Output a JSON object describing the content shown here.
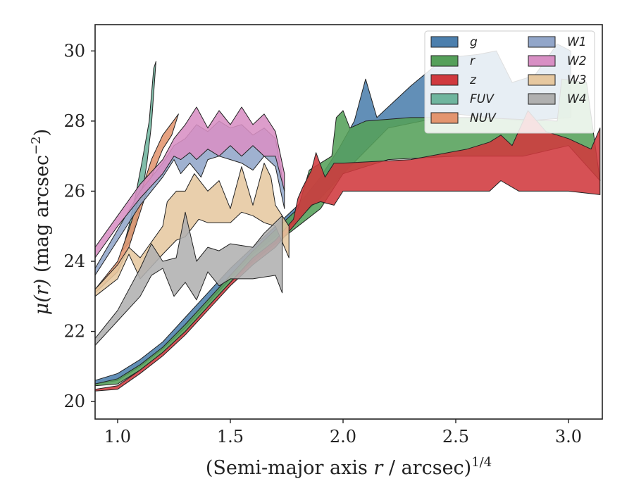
{
  "chart_data": {
    "type": "area",
    "xlabel_text": "(Semi-major axis ",
    "xlabel_var": "r",
    "xlabel_mid": " / arcsec)",
    "xlabel_sup": "1/4",
    "ylabel_text": " (mag arcsec",
    "ylabel_var": "μ(r)",
    "ylabel_sup": "−2",
    "ylabel_close": ")",
    "xlim": [
      0.9,
      3.15
    ],
    "ylim": [
      30.75,
      19.5
    ],
    "y_inverted": true,
    "x_ticks": [
      1.0,
      1.5,
      2.0,
      2.5,
      3.0
    ],
    "x_tick_labels": [
      "1.0",
      "1.5",
      "2.0",
      "2.5",
      "3.0"
    ],
    "y_ticks": [
      20,
      22,
      24,
      26,
      28,
      30
    ],
    "y_tick_labels": [
      "20",
      "22",
      "24",
      "26",
      "28",
      "30"
    ],
    "grid": false,
    "legend_placement": "top-right",
    "legend_columns": 2,
    "series": [
      {
        "name": "g",
        "color": "#4c7fad",
        "upper": [
          [
            0.9,
            20.5
          ],
          [
            1.0,
            20.6
          ],
          [
            1.1,
            21.0
          ],
          [
            1.2,
            21.5
          ],
          [
            1.3,
            22.1
          ],
          [
            1.4,
            22.8
          ],
          [
            1.5,
            23.5
          ],
          [
            1.6,
            24.2
          ],
          [
            1.7,
            24.7
          ],
          [
            1.8,
            25.2
          ],
          [
            1.9,
            25.8
          ],
          [
            2.0,
            26.5
          ],
          [
            2.2,
            27.8
          ],
          [
            2.5,
            28.2
          ],
          [
            2.8,
            28.0
          ],
          [
            3.01,
            28.1
          ]
        ],
        "lower": [
          [
            0.9,
            20.6
          ],
          [
            1.0,
            20.8
          ],
          [
            1.1,
            21.2
          ],
          [
            1.2,
            21.7
          ],
          [
            1.3,
            22.4
          ],
          [
            1.4,
            23.1
          ],
          [
            1.5,
            23.8
          ],
          [
            1.6,
            24.4
          ],
          [
            1.7,
            25.0
          ],
          [
            1.8,
            25.6
          ],
          [
            1.9,
            26.4
          ],
          [
            1.98,
            27.2
          ],
          [
            2.05,
            28.0
          ],
          [
            2.1,
            29.2
          ],
          [
            2.15,
            28.1
          ],
          [
            2.3,
            29.0
          ],
          [
            2.45,
            29.8
          ],
          [
            2.6,
            29.9
          ],
          [
            2.68,
            30.0
          ],
          [
            2.75,
            29.1
          ],
          [
            2.85,
            29.3
          ],
          [
            2.95,
            30.2
          ],
          [
            3.01,
            30.0
          ]
        ]
      },
      {
        "name": "r",
        "color": "#55a05a",
        "upper": [
          [
            0.9,
            20.45
          ],
          [
            1.0,
            20.5
          ],
          [
            1.1,
            20.9
          ],
          [
            1.2,
            21.4
          ],
          [
            1.3,
            22.0
          ],
          [
            1.4,
            22.7
          ],
          [
            1.5,
            23.4
          ],
          [
            1.6,
            24.0
          ],
          [
            1.7,
            24.5
          ],
          [
            1.8,
            25.0
          ],
          [
            1.9,
            25.5
          ],
          [
            2.0,
            26.5
          ],
          [
            2.2,
            26.9
          ],
          [
            2.5,
            27.0
          ],
          [
            2.8,
            27.0
          ],
          [
            3.0,
            27.3
          ],
          [
            3.14,
            26.3
          ]
        ],
        "lower": [
          [
            0.9,
            20.5
          ],
          [
            1.0,
            20.65
          ],
          [
            1.1,
            21.05
          ],
          [
            1.2,
            21.55
          ],
          [
            1.3,
            22.2
          ],
          [
            1.4,
            22.9
          ],
          [
            1.5,
            23.6
          ],
          [
            1.6,
            24.3
          ],
          [
            1.7,
            24.9
          ],
          [
            1.8,
            25.5
          ],
          [
            1.85,
            26.6
          ],
          [
            1.9,
            26.8
          ],
          [
            1.95,
            27.0
          ],
          [
            1.97,
            28.1
          ],
          [
            2.0,
            28.3
          ],
          [
            2.03,
            27.8
          ],
          [
            2.1,
            28.0
          ],
          [
            2.3,
            28.1
          ],
          [
            2.6,
            28.1
          ],
          [
            2.95,
            28.0
          ],
          [
            2.97,
            29.2
          ],
          [
            3.08,
            29.1
          ],
          [
            3.14,
            26.3
          ]
        ]
      },
      {
        "name": "z",
        "color": "#d0393e",
        "upper": [
          [
            0.9,
            20.3
          ],
          [
            1.0,
            20.35
          ],
          [
            1.1,
            20.8
          ],
          [
            1.2,
            21.3
          ],
          [
            1.3,
            21.9
          ],
          [
            1.4,
            22.6
          ],
          [
            1.5,
            23.3
          ],
          [
            1.6,
            23.9
          ],
          [
            1.7,
            24.4
          ],
          [
            1.78,
            25.0
          ],
          [
            1.82,
            25.3
          ],
          [
            1.86,
            25.6
          ],
          [
            1.9,
            25.7
          ],
          [
            1.96,
            25.6
          ],
          [
            2.0,
            26.0
          ],
          [
            2.3,
            26.0
          ],
          [
            2.65,
            26.0
          ],
          [
            2.7,
            26.3
          ],
          [
            2.78,
            26.0
          ],
          [
            2.9,
            26.0
          ],
          [
            3.0,
            26.0
          ],
          [
            3.14,
            25.9
          ]
        ],
        "lower": [
          [
            0.9,
            20.35
          ],
          [
            1.0,
            20.45
          ],
          [
            1.1,
            20.9
          ],
          [
            1.2,
            21.4
          ],
          [
            1.3,
            22.0
          ],
          [
            1.4,
            22.7
          ],
          [
            1.5,
            23.4
          ],
          [
            1.6,
            24.1
          ],
          [
            1.7,
            24.6
          ],
          [
            1.78,
            25.2
          ],
          [
            1.8,
            25.8
          ],
          [
            1.82,
            26.1
          ],
          [
            1.86,
            26.6
          ],
          [
            1.88,
            27.1
          ],
          [
            1.92,
            26.4
          ],
          [
            1.96,
            26.8
          ],
          [
            2.0,
            26.8
          ],
          [
            2.3,
            26.9
          ],
          [
            2.55,
            27.2
          ],
          [
            2.65,
            27.4
          ],
          [
            2.7,
            27.6
          ],
          [
            2.75,
            27.3
          ],
          [
            2.82,
            28.3
          ],
          [
            2.9,
            27.7
          ],
          [
            3.0,
            27.5
          ],
          [
            3.1,
            27.2
          ],
          [
            3.14,
            27.8
          ]
        ]
      },
      {
        "name": "FUV",
        "color": "#6fb59e",
        "upper": [
          [
            1.02,
            24.3
          ],
          [
            1.06,
            24.6
          ],
          [
            1.1,
            25.6
          ],
          [
            1.13,
            26.8
          ],
          [
            1.15,
            27.9
          ],
          [
            1.17,
            29.7
          ]
        ],
        "lower": [
          [
            1.02,
            24.3
          ],
          [
            1.05,
            25.0
          ],
          [
            1.08,
            25.9
          ],
          [
            1.11,
            26.9
          ],
          [
            1.14,
            28.0
          ],
          [
            1.16,
            29.5
          ]
        ]
      },
      {
        "name": "NUV",
        "color": "#e3956f",
        "upper": [
          [
            0.9,
            23.1
          ],
          [
            1.0,
            23.7
          ],
          [
            1.05,
            24.4
          ],
          [
            1.1,
            25.4
          ],
          [
            1.15,
            26.4
          ],
          [
            1.2,
            27.2
          ],
          [
            1.24,
            27.6
          ]
        ],
        "lower": [
          [
            0.9,
            23.2
          ],
          [
            1.0,
            24.0
          ],
          [
            1.05,
            24.9
          ],
          [
            1.1,
            25.9
          ],
          [
            1.15,
            26.9
          ],
          [
            1.2,
            27.6
          ],
          [
            1.27,
            28.2
          ]
        ]
      },
      {
        "name": "W1",
        "color": "#92a6c9",
        "upper": [
          [
            0.9,
            23.6
          ],
          [
            1.0,
            24.6
          ],
          [
            1.1,
            25.6
          ],
          [
            1.2,
            26.4
          ],
          [
            1.25,
            26.9
          ],
          [
            1.28,
            26.5
          ],
          [
            1.32,
            26.8
          ],
          [
            1.37,
            26.4
          ],
          [
            1.4,
            26.9
          ],
          [
            1.45,
            27.0
          ],
          [
            1.5,
            26.9
          ],
          [
            1.55,
            26.8
          ],
          [
            1.6,
            26.6
          ],
          [
            1.65,
            27.0
          ],
          [
            1.7,
            26.7
          ],
          [
            1.74,
            25.5
          ]
        ],
        "lower": [
          [
            0.9,
            23.8
          ],
          [
            1.0,
            24.9
          ],
          [
            1.1,
            26.0
          ],
          [
            1.2,
            26.8
          ],
          [
            1.25,
            27.3
          ],
          [
            1.3,
            27.5
          ],
          [
            1.35,
            27.9
          ],
          [
            1.4,
            27.7
          ],
          [
            1.45,
            28.0
          ],
          [
            1.5,
            27.8
          ],
          [
            1.55,
            27.9
          ],
          [
            1.6,
            27.6
          ],
          [
            1.65,
            27.8
          ],
          [
            1.7,
            27.5
          ],
          [
            1.74,
            26.0
          ]
        ]
      },
      {
        "name": "W2",
        "color": "#d88fc4",
        "upper": [
          [
            0.9,
            24.1
          ],
          [
            1.0,
            25.0
          ],
          [
            1.1,
            25.8
          ],
          [
            1.2,
            26.5
          ],
          [
            1.25,
            27.0
          ],
          [
            1.28,
            26.9
          ],
          [
            1.32,
            27.1
          ],
          [
            1.35,
            26.9
          ],
          [
            1.4,
            27.2
          ],
          [
            1.45,
            27.0
          ],
          [
            1.5,
            27.3
          ],
          [
            1.55,
            27.0
          ],
          [
            1.6,
            27.3
          ],
          [
            1.65,
            27.0
          ],
          [
            1.7,
            27.0
          ],
          [
            1.74,
            26.0
          ]
        ],
        "lower": [
          [
            0.9,
            24.4
          ],
          [
            1.0,
            25.3
          ],
          [
            1.1,
            26.2
          ],
          [
            1.2,
            26.9
          ],
          [
            1.25,
            27.5
          ],
          [
            1.3,
            27.9
          ],
          [
            1.35,
            28.4
          ],
          [
            1.4,
            27.8
          ],
          [
            1.45,
            28.3
          ],
          [
            1.5,
            27.9
          ],
          [
            1.55,
            28.4
          ],
          [
            1.6,
            27.9
          ],
          [
            1.65,
            28.2
          ],
          [
            1.7,
            27.7
          ],
          [
            1.74,
            26.5
          ]
        ]
      },
      {
        "name": "W3",
        "color": "#e6c8a0",
        "upper": [
          [
            0.9,
            23.0
          ],
          [
            1.0,
            23.5
          ],
          [
            1.05,
            24.2
          ],
          [
            1.1,
            23.5
          ],
          [
            1.2,
            24.2
          ],
          [
            1.26,
            24.6
          ],
          [
            1.3,
            24.7
          ],
          [
            1.36,
            25.2
          ],
          [
            1.4,
            25.1
          ],
          [
            1.45,
            25.1
          ],
          [
            1.5,
            25.1
          ],
          [
            1.55,
            25.4
          ],
          [
            1.6,
            25.3
          ],
          [
            1.65,
            25.1
          ],
          [
            1.7,
            25.0
          ],
          [
            1.76,
            24.1
          ]
        ],
        "lower": [
          [
            0.9,
            23.2
          ],
          [
            1.0,
            23.9
          ],
          [
            1.05,
            24.4
          ],
          [
            1.1,
            24.1
          ],
          [
            1.2,
            25.0
          ],
          [
            1.22,
            25.7
          ],
          [
            1.26,
            26.0
          ],
          [
            1.3,
            26.0
          ],
          [
            1.34,
            26.5
          ],
          [
            1.4,
            26.0
          ],
          [
            1.45,
            26.3
          ],
          [
            1.5,
            25.5
          ],
          [
            1.55,
            26.7
          ],
          [
            1.6,
            25.6
          ],
          [
            1.65,
            26.8
          ],
          [
            1.68,
            26.4
          ],
          [
            1.7,
            25.6
          ],
          [
            1.76,
            25.0
          ]
        ]
      },
      {
        "name": "W4",
        "color": "#b0b0b0",
        "upper": [
          [
            0.9,
            21.6
          ],
          [
            1.0,
            22.3
          ],
          [
            1.1,
            23.0
          ],
          [
            1.15,
            23.6
          ],
          [
            1.2,
            23.8
          ],
          [
            1.25,
            23.0
          ],
          [
            1.3,
            23.4
          ],
          [
            1.35,
            22.9
          ],
          [
            1.4,
            23.7
          ],
          [
            1.45,
            23.3
          ],
          [
            1.5,
            23.5
          ],
          [
            1.6,
            23.5
          ],
          [
            1.7,
            23.6
          ],
          [
            1.73,
            23.1
          ]
        ],
        "lower": [
          [
            0.9,
            21.8
          ],
          [
            1.0,
            22.6
          ],
          [
            1.1,
            23.8
          ],
          [
            1.15,
            24.5
          ],
          [
            1.2,
            24.0
          ],
          [
            1.26,
            24.1
          ],
          [
            1.3,
            25.4
          ],
          [
            1.35,
            24.0
          ],
          [
            1.4,
            24.4
          ],
          [
            1.45,
            24.3
          ],
          [
            1.5,
            24.5
          ],
          [
            1.6,
            24.4
          ],
          [
            1.65,
            24.8
          ],
          [
            1.73,
            25.3
          ]
        ]
      }
    ]
  }
}
